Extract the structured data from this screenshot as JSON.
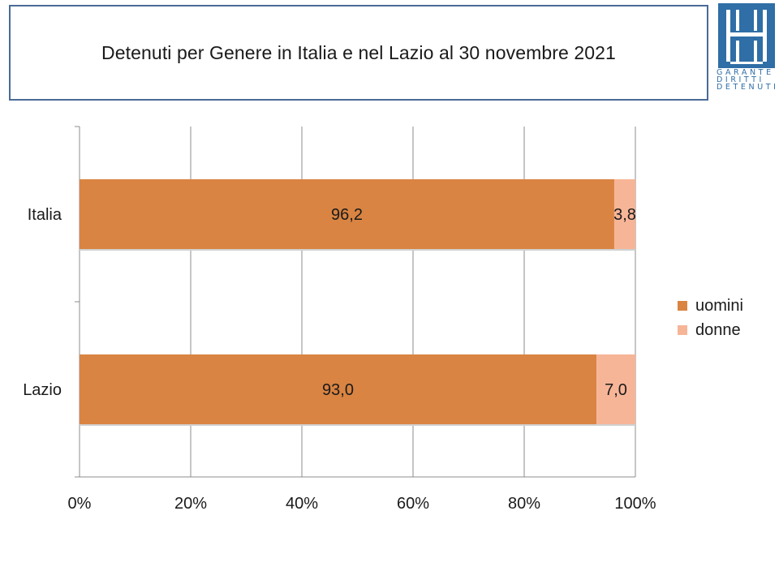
{
  "title": "Detenuti per Genere in Italia e nel Lazio al 30 novembre 2021",
  "logo": {
    "lines": [
      "GARANTE",
      "DIRITTI",
      "DETENUTI"
    ],
    "color": "#2f6ea6"
  },
  "chart_data": {
    "type": "bar",
    "orientation": "horizontal",
    "stacking": "percent",
    "categories": [
      "Italia",
      "Lazio"
    ],
    "series": [
      {
        "name": "uomini",
        "values": [
          96.2,
          93.0
        ],
        "labels": [
          "96,2",
          "93,0"
        ],
        "color": "#d98442"
      },
      {
        "name": "donne",
        "values": [
          3.8,
          7.0
        ],
        "labels": [
          "3,8",
          "7,0"
        ],
        "color": "#f7b597"
      }
    ],
    "x_ticks": [
      "0%",
      "20%",
      "40%",
      "60%",
      "80%",
      "100%"
    ],
    "xlim": [
      0,
      100
    ],
    "grid": true,
    "legend_position": "right"
  }
}
